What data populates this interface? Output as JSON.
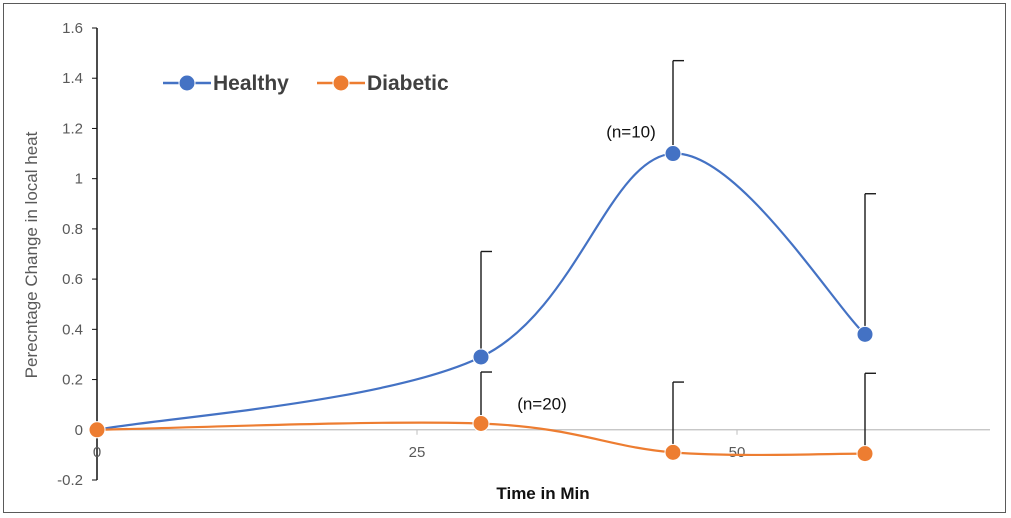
{
  "chart_data": {
    "type": "line",
    "title": "",
    "xlabel": "Time in Min",
    "ylabel": "Perecntage Change in local heat",
    "xlim": [
      0,
      70
    ],
    "ylim": [
      -0.2,
      1.6
    ],
    "x_ticks": [
      0,
      25,
      50
    ],
    "y_ticks": [
      -0.2,
      0,
      0.2,
      0.4,
      0.6,
      0.8,
      1,
      1.2,
      1.4,
      1.6
    ],
    "y_tick_labels": [
      "-0.2",
      "0",
      "0.2",
      "0.4",
      "0.6",
      "0.8",
      "1",
      "1.2",
      "1.4",
      "1.6"
    ],
    "grid": false,
    "legend_position": "top-left",
    "series": [
      {
        "name": "Healthy",
        "color": "#4472c4",
        "x": [
          0,
          30,
          45,
          60
        ],
        "y": [
          0,
          0.29,
          1.1,
          0.38
        ],
        "error_upper": [
          null,
          0.71,
          1.47,
          0.94
        ],
        "annotation": "(n=10)",
        "annotation_at_index": 2
      },
      {
        "name": "Diabetic",
        "color": "#ed7d31",
        "x": [
          0,
          30,
          45,
          60
        ],
        "y": [
          0,
          0.025,
          -0.09,
          -0.095
        ],
        "error_upper": [
          null,
          0.23,
          0.19,
          0.225
        ],
        "annotation": "(n=20)",
        "annotation_at_index": 1
      }
    ]
  }
}
